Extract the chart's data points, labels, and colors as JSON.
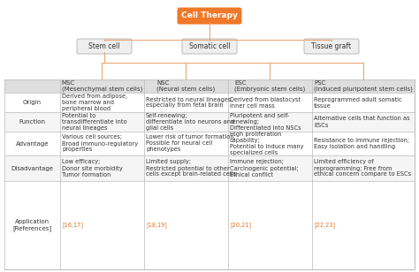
{
  "title_box": "Cell Therapy",
  "title_box_color": "#F07828",
  "title_text_color": "#FFFFFF",
  "branch_nodes": [
    "Stem cell",
    "Somatic cell",
    "Tissue graft"
  ],
  "branch_node_color": "#EEEEEE",
  "branch_node_border": "#BBBBBB",
  "line_color": "#E8A878",
  "table_header_bg": "#DEDEDE",
  "table_border": "#BBBBBB",
  "col_headers": [
    "",
    "MSC\n(Mesenchymal stem cells)",
    "NSC\n(Neural stem cells)",
    "ESC\n(Embryonic stem cells)",
    "PSC\n(Induced pluripotent stem cells)"
  ],
  "row_labels": [
    "Origin",
    "Function",
    "Advantage",
    "Disadvantage",
    "Application\n[References]"
  ],
  "cells": [
    [
      "Derived from adipose,\nbone marrow and\nperipheral blood",
      "Restricted to neural lineages,\nespecially from fetal brain",
      "Derived from blastocyst\ninner cell mass",
      "Reprogrammed adult somatic\ntissue"
    ],
    [
      "Potential to\ntransdifferentiate into\nneural lineages",
      "Self-renewing;\ndifferentiate into neurons and\nglial cells",
      "Pluripotent and self-\nrenewing;\nDifferentiated into NSCs",
      "Alternative cells that function as\nESCs"
    ],
    [
      "Various cell sources;\nBroad immuno-regulatory\nproperties",
      "Lower risk of tumor formation;\nPossible for neural cell\nphenotypes",
      "High proliferation\ncapability;\nPotential to induce many\nspecialized cells",
      "Resistance to immune rejection;\nEasy isolation and handling"
    ],
    [
      "Low efficacy;\nDonor site morbidity\nTumor formation",
      "Limited supply;\nRestricted potential to other\ncells except brain-related cells",
      "Immune rejection;\nCarcinogenic potential;\nEthical conflict",
      "Limited efficiency of\nreprogramming; Free from\nethical concern compare to ESCs"
    ],
    [
      "[16,17]",
      "[18,19]",
      "[20,21]",
      "[22,23]"
    ]
  ],
  "ref_color": "#E07020",
  "text_color": "#333333",
  "font_size": 4.8,
  "header_font_size": 5.0,
  "label_font_size": 5.0
}
